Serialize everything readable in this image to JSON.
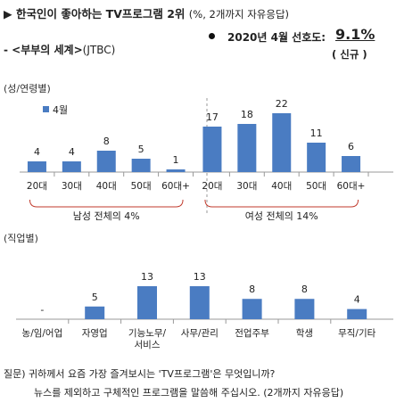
{
  "header": {
    "title": "▶ 한국인이 좋아하는 TV프로그램 2위",
    "title_sub": "(%, 2개까지 자유응답)",
    "rank_line": "2020년 4월 선호도:",
    "share_value": "9.1%",
    "new_badge": "( 신규 )",
    "program_name": "- <부부의 세계>",
    "network": "(JTBC)"
  },
  "chart_data": [
    {
      "type": "bar",
      "section_label": "(성/연령별)",
      "legend": "4월",
      "categories": [
        "20대",
        "30대",
        "40대",
        "50대",
        "60대+",
        "20대",
        "30대",
        "40대",
        "50대",
        "60대+"
      ],
      "values": [
        4,
        4,
        8,
        5,
        1,
        17,
        18,
        22,
        11,
        6
      ],
      "value_labels": [
        "4",
        "4",
        "8",
        "5",
        "1",
        "17",
        "18",
        "22",
        "11",
        "6"
      ],
      "groups": [
        {
          "label": "남성 전체의 4%",
          "from": 0,
          "to": 4
        },
        {
          "label": "여성 전체의 14%",
          "from": 5,
          "to": 9
        }
      ],
      "ylim": [
        0,
        22
      ]
    },
    {
      "type": "bar",
      "section_label": "(직업별)",
      "categories": [
        "농/임/어업",
        "자영업",
        "기능노무/\n서비스",
        "사무/관리",
        "전업주부",
        "학생",
        "무직/기타"
      ],
      "values": [
        0,
        5,
        13,
        13,
        8,
        8,
        4
      ],
      "value_labels": [
        "-",
        "5",
        "13",
        "13",
        "8",
        "8",
        "4"
      ],
      "ylim": [
        0,
        13
      ]
    }
  ],
  "footnote": {
    "line1": "질문) 귀하께서 요즘 가장 즐겨보시는 'TV프로그램'은 무엇입니까?",
    "line2": "뉴스를 제외하고 구체적인 프로그램을 말씀해 주십시오. (2개까지 자유응답)"
  },
  "colors": {
    "bar": "#4a7cc2",
    "axis": "#999999",
    "bracket": "#c0392b"
  }
}
